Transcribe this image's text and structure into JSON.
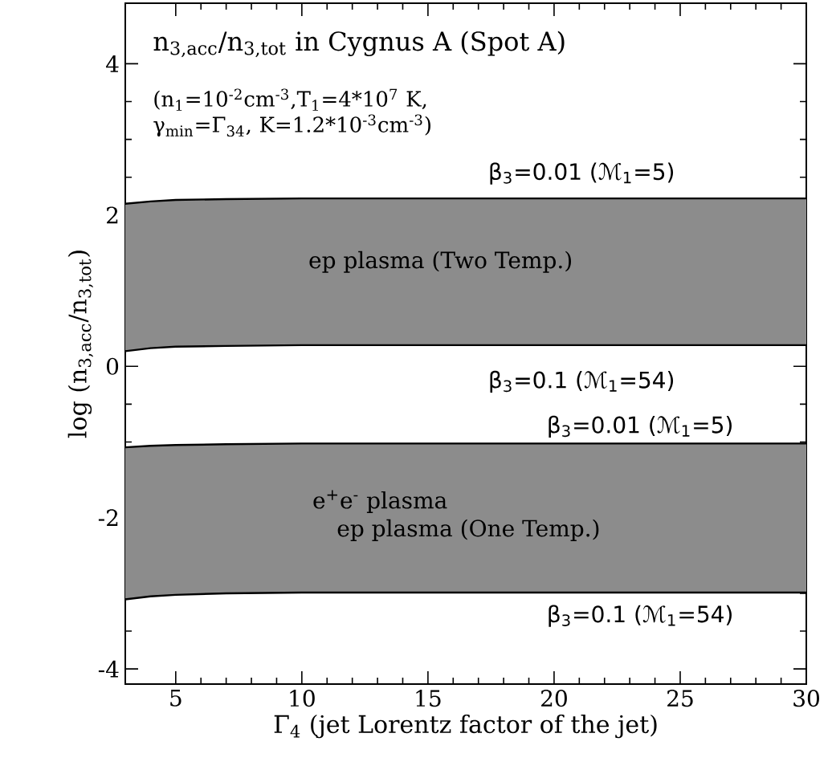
{
  "chart_data": {
    "type": "line",
    "title": "n$_{3,acc}$/n$_{3,tot}$ in Cygnus A (Spot A)",
    "subtitle": "(n$_{1}$=10$^{-2}$cm$^{-3}$,T$_{1}$=4*10$^{7}$ K, γ$_{min}$=Γ$_{34}$, K=1.2*10$^{-3}$cm$^{-3}$)",
    "xlabel": "Γ$_{4}$ (jet Lorentz factor of the jet)",
    "ylabel": "log (n$_{3,acc}$/n$_{3,tot}$)",
    "xlim": [
      3,
      30
    ],
    "ylim": [
      -4.2,
      4.8
    ],
    "xticks": [
      5,
      10,
      15,
      20,
      25,
      30
    ],
    "yticks": [
      -4,
      -2,
      0,
      2,
      4
    ],
    "series": [
      {
        "color": "#000000",
        "x": [
          3,
          4,
          5,
          7,
          10,
          15,
          20,
          30
        ],
        "values": [
          2.15,
          2.18,
          2.2,
          2.21,
          2.22,
          2.22,
          2.22,
          2.22
        ],
        "lower": [
          0.2,
          0.24,
          0.26,
          0.27,
          0.28,
          0.28,
          0.28,
          0.28
        ],
        "upper": [
          2.15,
          2.18,
          2.2,
          2.21,
          2.22,
          2.22,
          2.22,
          2.22
        ]
      },
      {
        "color": "#000000",
        "x": [
          3,
          4,
          5,
          7,
          10,
          15,
          20,
          30
        ],
        "values": [
          0.2,
          0.24,
          0.26,
          0.27,
          0.28,
          0.28,
          0.28,
          0.28
        ]
      },
      {
        "color": "#000000",
        "x": [
          3,
          4,
          5,
          7,
          10,
          15,
          20,
          30
        ],
        "values": [
          -1.07,
          -1.05,
          -1.04,
          -1.03,
          -1.02,
          -1.02,
          -1.02,
          -1.02
        ],
        "lower": [
          -3.08,
          -3.04,
          -3.02,
          -3.0,
          -2.99,
          -2.99,
          -2.99,
          -2.99
        ],
        "upper": [
          -1.07,
          -1.05,
          -1.04,
          -1.03,
          -1.02,
          -1.02,
          -1.02,
          -1.02
        ]
      },
      {
        "color": "#000000",
        "x": [
          3,
          4,
          5,
          7,
          10,
          15,
          20,
          30
        ],
        "values": [
          -3.08,
          -3.04,
          -3.02,
          -3.0,
          -2.99,
          -2.99,
          -2.99,
          -2.99
        ]
      }
    ],
    "annotations": [
      "β$_{3}$=0.01 (ℳ$_{1}$=5)",
      "ep plasma (Two Temp.)",
      "β$_{3}$=0.1 (ℳ$_{1}$=54)",
      "β$_{3}$=0.01 (ℳ$_{1}$=5)",
      "e$^{+}$e$^{-}$ plasma",
      "ep plasma (One Temp.)",
      "β$_{3}$=0.1 (ℳ$_{1}$=54)"
    ],
    "grid": false
  }
}
